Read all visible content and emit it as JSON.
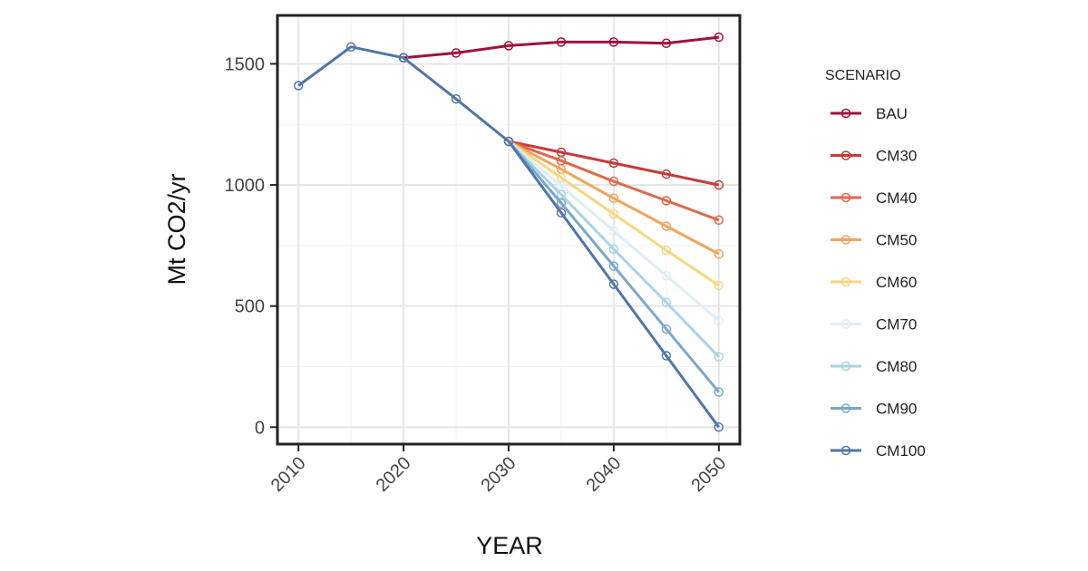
{
  "chart_data": {
    "type": "line",
    "xlabel": "YEAR",
    "ylabel": "Mt CO2/yr",
    "xlim": [
      2008,
      2052
    ],
    "ylim": [
      -70,
      1700
    ],
    "xticks": [
      2010,
      2020,
      2030,
      2040,
      2050
    ],
    "yticks": [
      0,
      500,
      1000,
      1500
    ],
    "xtick_labels": [
      "2010",
      "2020",
      "2030",
      "2040",
      "2050"
    ],
    "ytick_labels": [
      "0",
      "500",
      "1000",
      "1500"
    ],
    "grid": true,
    "legend": {
      "title": "SCENARIO",
      "position": "right"
    },
    "history": {
      "x": [
        2010,
        2015,
        2020,
        2025,
        2030
      ],
      "y": [
        1410,
        1570,
        1525,
        1355,
        1180
      ],
      "color": "#4f76aa"
    },
    "series": [
      {
        "name": "BAU",
        "color": "#a0123a",
        "x": [
          2020,
          2025,
          2030,
          2035,
          2040,
          2045,
          2050
        ],
        "y": [
          1525,
          1545,
          1575,
          1590,
          1590,
          1585,
          1610
        ]
      },
      {
        "name": "CM30",
        "color": "#c73b3b",
        "x": [
          2030,
          2035,
          2040,
          2045,
          2050
        ],
        "y": [
          1180,
          1135,
          1090,
          1045,
          1000
        ]
      },
      {
        "name": "CM40",
        "color": "#e0674a",
        "x": [
          2030,
          2035,
          2040,
          2045,
          2050
        ],
        "y": [
          1180,
          1100,
          1015,
          935,
          855
        ]
      },
      {
        "name": "CM50",
        "color": "#f2a45c",
        "x": [
          2030,
          2035,
          2040,
          2045,
          2050
        ],
        "y": [
          1180,
          1065,
          945,
          830,
          715
        ]
      },
      {
        "name": "CM60",
        "color": "#f7d680",
        "x": [
          2030,
          2035,
          2040,
          2045,
          2050
        ],
        "y": [
          1180,
          1030,
          880,
          730,
          585
        ]
      },
      {
        "name": "CM70",
        "color": "#dceff5",
        "x": [
          2030,
          2035,
          2040,
          2045,
          2050
        ],
        "y": [
          1180,
          995,
          810,
          625,
          440
        ]
      },
      {
        "name": "CM80",
        "color": "#a9d3e6",
        "x": [
          2030,
          2035,
          2040,
          2045,
          2050
        ],
        "y": [
          1180,
          960,
          735,
          515,
          290
        ]
      },
      {
        "name": "CM90",
        "color": "#7aa8cb",
        "x": [
          2030,
          2035,
          2040,
          2045,
          2050
        ],
        "y": [
          1180,
          925,
          665,
          405,
          145
        ]
      },
      {
        "name": "CM100",
        "color": "#4f76aa",
        "x": [
          2030,
          2035,
          2040,
          2045,
          2050
        ],
        "y": [
          1180,
          885,
          590,
          295,
          0
        ]
      }
    ]
  }
}
